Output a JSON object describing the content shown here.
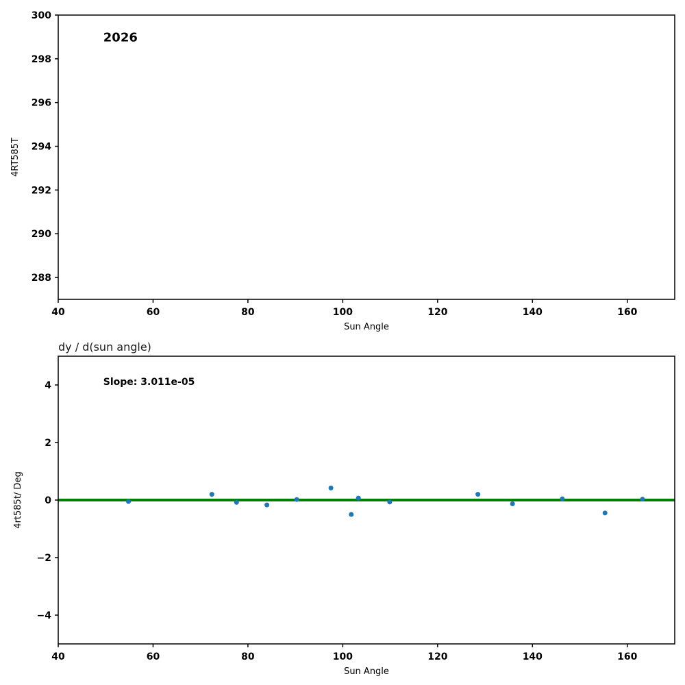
{
  "page": {
    "background": "#ffffff"
  },
  "chart_data": [
    {
      "type": "scatter",
      "title": "",
      "annotation": {
        "text": "2026",
        "x": 49.5,
        "y": 298.8,
        "size": 18
      },
      "xlabel": "Sun Angle",
      "ylabel": "4RT585T",
      "xlim": [
        40,
        170
      ],
      "ylim": [
        287,
        300
      ],
      "xticks": [
        40,
        60,
        80,
        100,
        120,
        140,
        160
      ],
      "yticks": [
        288,
        290,
        292,
        294,
        296,
        298,
        300
      ],
      "grid": false,
      "legend": false,
      "point_color": "#1f77b4",
      "points": []
    },
    {
      "type": "scatter",
      "title": "dy / d(sun angle)",
      "annotation": {
        "text": "Slope: 3.011e-05",
        "x": 49.5,
        "y": 4.0,
        "size": 14
      },
      "xlabel": "Sun Angle",
      "ylabel": "4rt585t/ Deg",
      "xlim": [
        40,
        170
      ],
      "ylim": [
        -5,
        5
      ],
      "xticks": [
        40,
        60,
        80,
        100,
        120,
        140,
        160
      ],
      "yticks": [
        -4,
        -2,
        0,
        2,
        4
      ],
      "grid": false,
      "legend": false,
      "hline": {
        "y": 0,
        "color": "#008000",
        "width": 4
      },
      "point_color": "#1f77b4",
      "points": [
        [
          54.8,
          -0.05
        ],
        [
          72.4,
          0.2
        ],
        [
          77.6,
          -0.08
        ],
        [
          84.0,
          -0.17
        ],
        [
          90.3,
          0.02
        ],
        [
          97.5,
          0.42
        ],
        [
          101.8,
          -0.5
        ],
        [
          103.3,
          0.07
        ],
        [
          109.9,
          -0.07
        ],
        [
          128.5,
          0.2
        ],
        [
          135.8,
          -0.13
        ],
        [
          146.3,
          0.04
        ],
        [
          155.3,
          -0.45
        ],
        [
          163.2,
          0.03
        ]
      ]
    }
  ]
}
